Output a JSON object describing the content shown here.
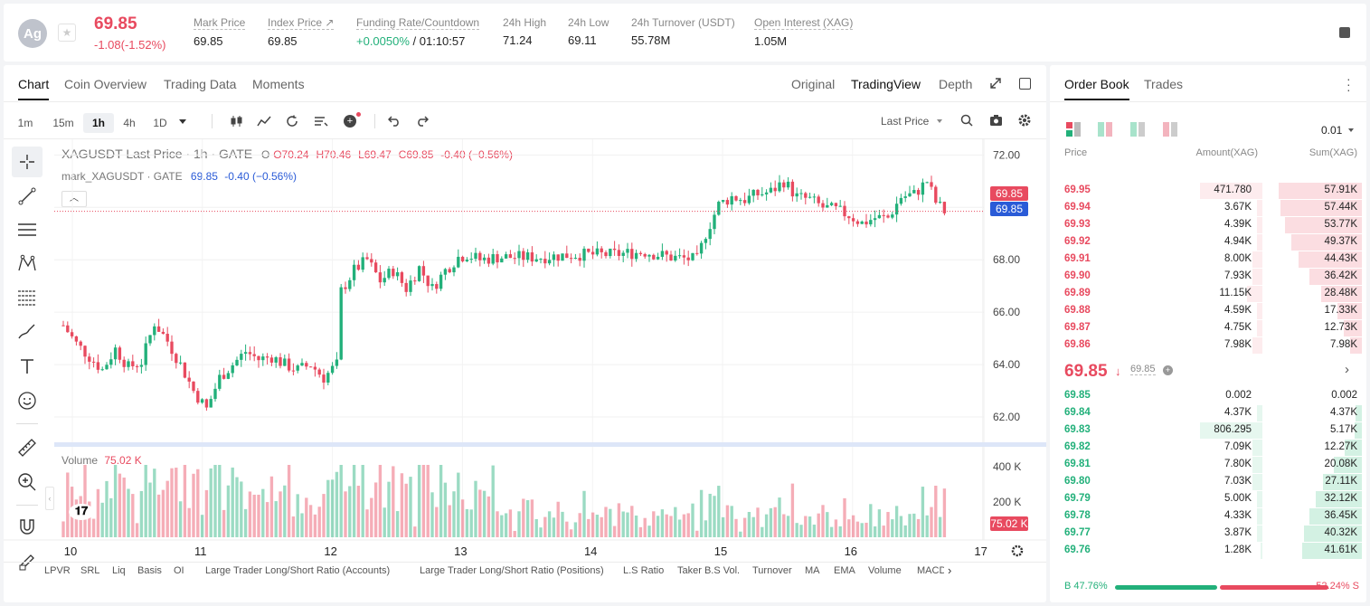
{
  "header": {
    "avatar": "Ag",
    "price": "69.85",
    "change": "-1.08(-1.52%)",
    "stats": [
      {
        "label": "Mark Price",
        "value": "69.85"
      },
      {
        "label": "Index Price ↗",
        "value": "69.85"
      },
      {
        "label": "Funding Rate/Countdown",
        "value_a": "+0.0050%",
        "value_b": " / 01:10:57"
      },
      {
        "label": "24h High",
        "value": "71.24"
      },
      {
        "label": "24h Low",
        "value": "69.11"
      },
      {
        "label": "24h Turnover (USDT)",
        "value": "55.78M"
      },
      {
        "label": "Open Interest (XAG)",
        "value": "1.05M"
      }
    ]
  },
  "chart_tabs": [
    "Chart",
    "Coin Overview",
    "Trading Data",
    "Moments"
  ],
  "view_tabs": [
    "Original",
    "TradingView",
    "Depth"
  ],
  "timeframes": [
    "1m",
    "15m",
    "1h",
    "4h",
    "1D"
  ],
  "price_type": "Last Price",
  "legend": {
    "symbol": "XAGUSDT Last Price · 1h · GATE",
    "o": "O70.24",
    "h": "H70.46",
    "l": "L69.47",
    "c": "C69.85",
    "chg": "-0.40 (−0.56%)",
    "mark": "mark_XAGUSDT · GATE",
    "mark_val": "69.85",
    "mark_chg": "-0.40 (−0.56%)"
  },
  "volume": {
    "label": "Volume",
    "value": "75.02 K"
  },
  "y_labels": [
    "72.00",
    "70.00",
    "68.00",
    "66.00",
    "64.00",
    "62.00"
  ],
  "vol_labels": [
    "400 K",
    "200 K"
  ],
  "price_tags": {
    "last": "69.85",
    "mark": "69.85",
    "volume": "75.02 K"
  },
  "x_labels": [
    "10",
    "11",
    "12",
    "13",
    "14",
    "15",
    "16",
    "17"
  ],
  "indicators": [
    "LPVR",
    "SRL",
    "Liq",
    "Basis",
    "OI",
    "Large Trader Long/Short Ratio (Accounts)",
    "Large Trader Long/Short Ratio (Positions)",
    "L.S Ratio",
    "Taker B.S Vol.",
    "Turnover",
    "MA",
    "EMA",
    "Volume",
    "MACD"
  ],
  "colors": {
    "up": "#22b07a",
    "down": "#e84a5f",
    "mark_line": "#2a5bd7"
  },
  "chart_data": {
    "type": "candlestick",
    "symbol": "XAGUSDT",
    "interval": "1h",
    "ylim": [
      61,
      72.6
    ],
    "x_ticks": [
      "10",
      "11",
      "12",
      "13",
      "14",
      "15",
      "16",
      "17"
    ],
    "close_path": [
      [
        0,
        65.5
      ],
      [
        3,
        64.8
      ],
      [
        6,
        64.3
      ],
      [
        9,
        63.8
      ],
      [
        12,
        64.6
      ],
      [
        15,
        63.9
      ],
      [
        18,
        64.1
      ],
      [
        21,
        65.6
      ],
      [
        24,
        64.9
      ],
      [
        27,
        64.0
      ],
      [
        30,
        63.0
      ],
      [
        33,
        62.3
      ],
      [
        36,
        63.5
      ],
      [
        39,
        64.0
      ],
      [
        42,
        64.5
      ],
      [
        45,
        64.2
      ],
      [
        48,
        64.3
      ],
      [
        51,
        64.0
      ],
      [
        54,
        63.8
      ],
      [
        57,
        64.0
      ],
      [
        60,
        63.5
      ],
      [
        63,
        64.0
      ],
      [
        64,
        66.8
      ],
      [
        67,
        67.6
      ],
      [
        70,
        68.0
      ],
      [
        73,
        67.2
      ],
      [
        76,
        67.6
      ],
      [
        79,
        66.9
      ],
      [
        82,
        67.7
      ],
      [
        85,
        66.9
      ],
      [
        88,
        67.6
      ],
      [
        91,
        68.1
      ],
      [
        93,
        68.2
      ],
      [
        96,
        68.0
      ],
      [
        100,
        68.1
      ],
      [
        110,
        68.1
      ],
      [
        118,
        68.2
      ],
      [
        126,
        68.2
      ],
      [
        134,
        68.3
      ],
      [
        140,
        68.1
      ],
      [
        146,
        68.0
      ],
      [
        148,
        69.0
      ],
      [
        151,
        70.1
      ],
      [
        154,
        70.4
      ],
      [
        157,
        70.3
      ],
      [
        160,
        70.5
      ],
      [
        163,
        70.6
      ],
      [
        166,
        71.0
      ],
      [
        169,
        70.4
      ],
      [
        172,
        70.3
      ],
      [
        175,
        70.0
      ],
      [
        178,
        69.9
      ],
      [
        181,
        69.7
      ],
      [
        184,
        69.4
      ],
      [
        187,
        69.6
      ],
      [
        190,
        69.6
      ],
      [
        193,
        70.4
      ],
      [
        196,
        70.5
      ],
      [
        199,
        71.0
      ],
      [
        201,
        70.2
      ],
      [
        203,
        69.85
      ]
    ],
    "last_price": 69.85,
    "volume_range": [
      0,
      500000
    ],
    "last_volume": "75.02 K"
  },
  "orderbook": {
    "tabs": [
      "Order Book",
      "Trades"
    ],
    "precision": "0.01",
    "columns": [
      "Price",
      "Amount(XAG)",
      "Sum(XAG)"
    ],
    "asks": [
      {
        "price": "69.95",
        "amount": "471.780",
        "sum": "57.91K",
        "af": 0.6,
        "sf": 0.88
      },
      {
        "price": "69.94",
        "amount": "3.67K",
        "sum": "57.44K",
        "af": 0.05,
        "sf": 0.86
      },
      {
        "price": "69.93",
        "amount": "4.39K",
        "sum": "53.77K",
        "af": 0.05,
        "sf": 0.81
      },
      {
        "price": "69.92",
        "amount": "4.94K",
        "sum": "49.37K",
        "af": 0.05,
        "sf": 0.74
      },
      {
        "price": "69.91",
        "amount": "8.00K",
        "sum": "44.43K",
        "af": 0.1,
        "sf": 0.67
      },
      {
        "price": "69.90",
        "amount": "7.93K",
        "sum": "36.42K",
        "af": 0.1,
        "sf": 0.55
      },
      {
        "price": "69.89",
        "amount": "11.15K",
        "sum": "28.48K",
        "af": 0.15,
        "sf": 0.43
      },
      {
        "price": "69.88",
        "amount": "4.59K",
        "sum": "17.33K",
        "af": 0.05,
        "sf": 0.26
      },
      {
        "price": "69.87",
        "amount": "4.75K",
        "sum": "12.73K",
        "af": 0.05,
        "sf": 0.19
      },
      {
        "price": "69.86",
        "amount": "7.98K",
        "sum": "7.98K",
        "af": 0.1,
        "sf": 0.12
      }
    ],
    "mid": {
      "price": "69.85",
      "mark": "69.85"
    },
    "bids": [
      {
        "price": "69.85",
        "amount": "0.002",
        "sum": "0.002",
        "af": 0.0,
        "sf": 0.0
      },
      {
        "price": "69.84",
        "amount": "4.37K",
        "sum": "4.37K",
        "af": 0.05,
        "sf": 0.07
      },
      {
        "price": "69.83",
        "amount": "806.295",
        "sum": "5.17K",
        "af": 0.6,
        "sf": 0.08
      },
      {
        "price": "69.82",
        "amount": "7.09K",
        "sum": "12.27K",
        "af": 0.1,
        "sf": 0.18
      },
      {
        "price": "69.81",
        "amount": "7.80K",
        "sum": "20.08K",
        "af": 0.1,
        "sf": 0.3
      },
      {
        "price": "69.80",
        "amount": "7.03K",
        "sum": "27.11K",
        "af": 0.1,
        "sf": 0.41
      },
      {
        "price": "69.79",
        "amount": "5.00K",
        "sum": "32.12K",
        "af": 0.05,
        "sf": 0.49
      },
      {
        "price": "69.78",
        "amount": "4.33K",
        "sum": "36.45K",
        "af": 0.05,
        "sf": 0.55
      },
      {
        "price": "69.77",
        "amount": "3.87K",
        "sum": "40.32K",
        "af": 0.05,
        "sf": 0.61
      },
      {
        "price": "69.76",
        "amount": "1.28K",
        "sum": "41.61K",
        "af": 0.02,
        "sf": 0.63
      }
    ],
    "ratio": {
      "buy": "B 47.76%",
      "sell": "52.24% S",
      "buy_frac": 0.4776
    }
  }
}
